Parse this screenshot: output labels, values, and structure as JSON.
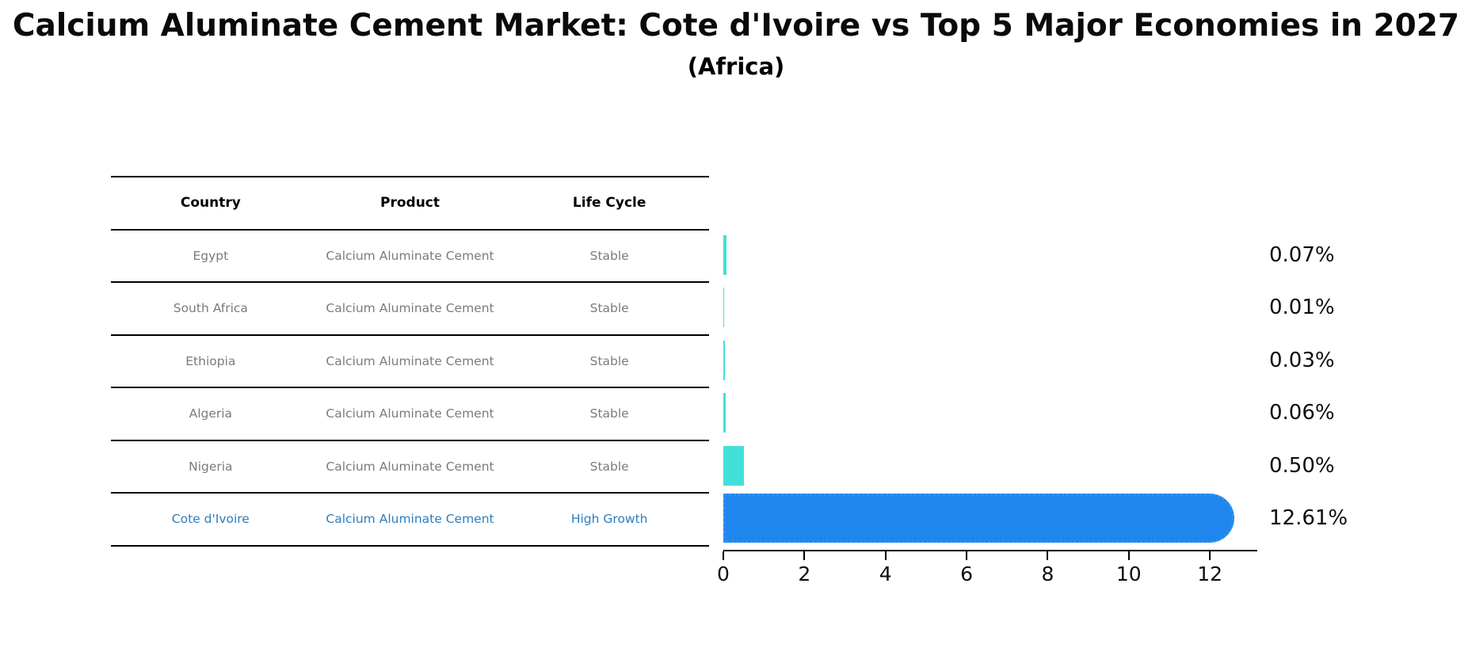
{
  "chart_data": {
    "type": "bar",
    "orientation": "horizontal",
    "title": "Calcium Aluminate Cement Market: Cote d'Ivoire vs Top 5 Major Economies in 2027",
    "subtitle": "(Africa)",
    "categories": [
      "Egypt",
      "South Africa",
      "Ethiopia",
      "Algeria",
      "Nigeria",
      "Cote d'Ivoire"
    ],
    "values": [
      0.07,
      0.01,
      0.03,
      0.06,
      0.5,
      12.61
    ],
    "value_labels": [
      "0.07%",
      "0.01%",
      "0.03%",
      "0.06%",
      "0.50%",
      "12.61%"
    ],
    "highlight_index": 5,
    "x_ticks": [
      "0",
      "2",
      "4",
      "6",
      "8",
      "10",
      "12"
    ],
    "x_tick_values": [
      0,
      2,
      4,
      6,
      8,
      10,
      12
    ],
    "xlim": [
      0,
      13.17
    ],
    "xlabel": "",
    "ylabel": "",
    "grid": false,
    "legend": "none",
    "colors": {
      "bar_default": "#43dfd9",
      "bar_highlight": "#1f86ee",
      "highlight_text": "#2e7ebc",
      "row_text": "#7b7b7b",
      "axis": "#000000",
      "background": "#ffffff"
    }
  },
  "table": {
    "headers": [
      "Country",
      "Product",
      "Life Cycle"
    ],
    "rows": [
      {
        "country": "Egypt",
        "product": "Calcium Aluminate Cement",
        "life_cycle": "Stable",
        "highlight": false
      },
      {
        "country": "South Africa",
        "product": "Calcium Aluminate Cement",
        "life_cycle": "Stable",
        "highlight": false
      },
      {
        "country": "Ethiopia",
        "product": "Calcium Aluminate Cement",
        "life_cycle": "Stable",
        "highlight": false
      },
      {
        "country": "Algeria",
        "product": "Calcium Aluminate Cement",
        "life_cycle": "Stable",
        "highlight": false
      },
      {
        "country": "Nigeria",
        "product": "Calcium Aluminate Cement",
        "life_cycle": "Stable",
        "highlight": false
      },
      {
        "country": "Cote d'Ivoire",
        "product": "Calcium Aluminate Cement",
        "life_cycle": "High Growth",
        "highlight": true
      }
    ]
  }
}
